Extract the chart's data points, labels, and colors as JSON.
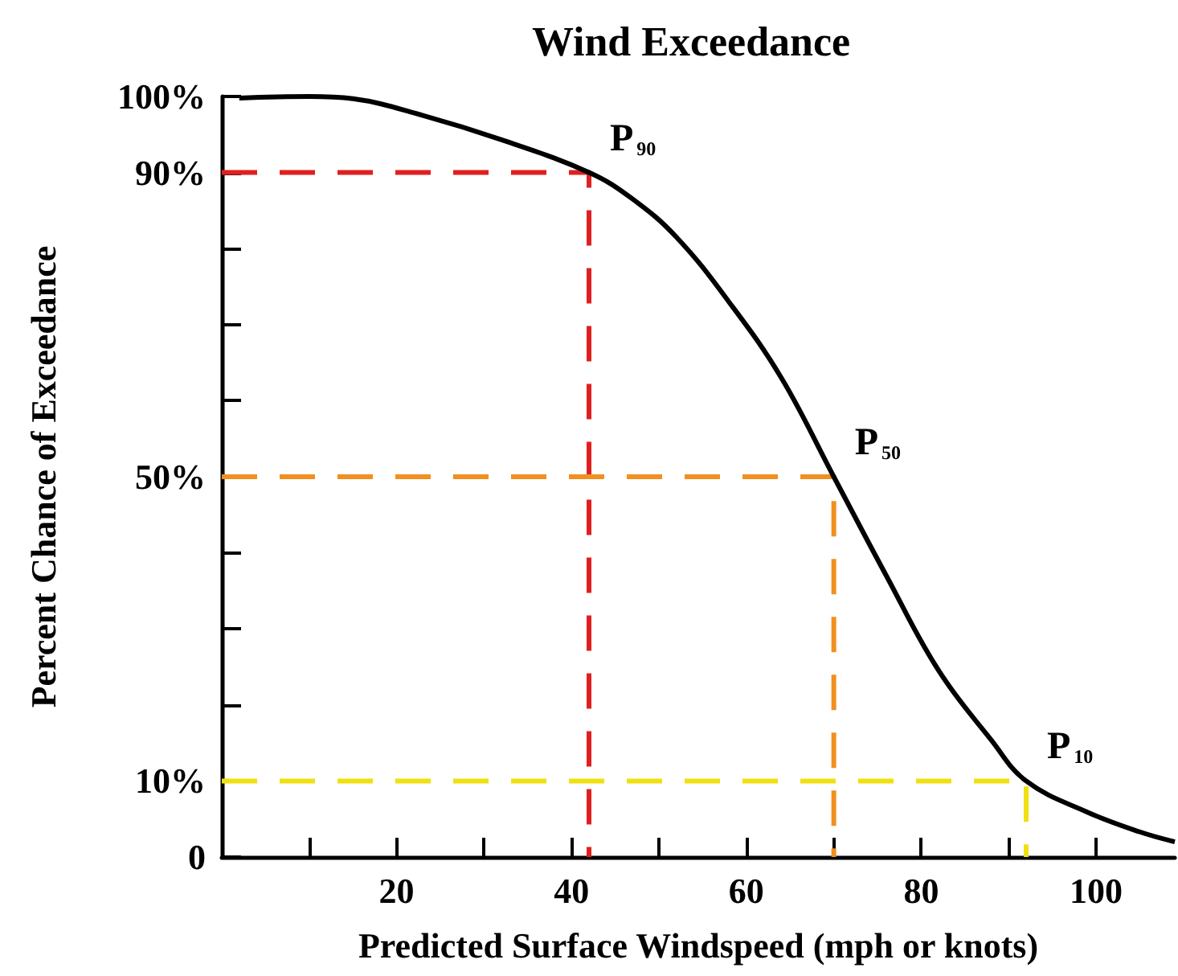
{
  "chart_data": {
    "type": "line",
    "title": "Wind Exceedance",
    "xlabel": "Predicted Surface Windspeed (mph or knots)",
    "ylabel": "Percent Chance of Exceedance",
    "xlim": [
      0,
      109
    ],
    "ylim": [
      0,
      100
    ],
    "xticks": [
      {
        "value": 10,
        "label": null
      },
      20,
      {
        "value": 30,
        "label": null
      },
      40,
      {
        "value": 50,
        "label": null
      },
      60,
      {
        "value": 70,
        "label": null
      },
      80,
      {
        "value": 90,
        "label": null
      },
      100
    ],
    "yticks": [
      0,
      {
        "value": 10,
        "label": "10%"
      },
      {
        "value": 20,
        "label": null
      },
      {
        "value": 30,
        "label": null
      },
      {
        "value": 40,
        "label": null
      },
      {
        "value": 50,
        "label": "50%"
      },
      {
        "value": 60,
        "label": null
      },
      {
        "value": 70,
        "label": null
      },
      {
        "value": 80,
        "label": null
      },
      {
        "value": 90,
        "label": "90%"
      },
      {
        "value": 100,
        "label": "100%"
      }
    ],
    "series": [
      {
        "color": "#e02020",
        "line_style": "dashed",
        "x": [
          0,
          42,
          42
        ],
        "values": [
          90,
          90,
          0
        ]
      },
      {
        "color": "#f09020",
        "line_style": "dashed",
        "x": [
          0,
          70,
          70
        ],
        "values": [
          50,
          50,
          0
        ]
      },
      {
        "color": "#f0e010",
        "line_style": "dashed",
        "x": [
          0,
          92,
          92
        ],
        "values": [
          10,
          10,
          0
        ]
      },
      {
        "color": "#000000",
        "line_style": "solid",
        "x": [
          2,
          10,
          15,
          23,
          32,
          42,
          47,
          52,
          58,
          64,
          70,
          76,
          82,
          88,
          92,
          99,
          105,
          109
        ],
        "values": [
          99.8,
          100,
          99.7,
          97.5,
          94.3,
          90,
          86.5,
          81.5,
          73,
          63,
          50,
          37,
          24.5,
          15.4,
          10,
          5.9,
          3.3,
          2
        ]
      }
    ],
    "annotations": [
      {
        "text": "P$_{90}$",
        "x": 42,
        "y": 90
      },
      {
        "text": "P$_{50}$",
        "x": 70,
        "y": 50
      },
      {
        "text": "P$_{10}$",
        "x": 92,
        "y": 10
      }
    ]
  }
}
